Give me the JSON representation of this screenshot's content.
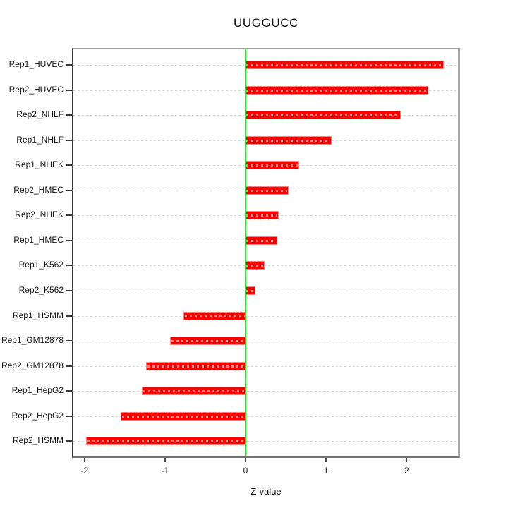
{
  "title": "UUGGUCC",
  "chart_data": {
    "type": "bar",
    "orientation": "horizontal",
    "title": "UUGGUCC",
    "xlabel": "Z-value",
    "ylabel": "",
    "categories": [
      "Rep1_HUVEC",
      "Rep2_HUVEC",
      "Rep2_NHLF",
      "Rep1_NHLF",
      "Rep1_NHEK",
      "Rep2_HMEC",
      "Rep2_NHEK",
      "Rep1_HMEC",
      "Rep1_K562",
      "Rep2_K562",
      "Rep1_HSMM",
      "Rep1_GM12878",
      "Rep2_GM12878",
      "Rep1_HepG2",
      "Rep2_HepG2",
      "Rep2_HSMM"
    ],
    "values": [
      2.45,
      2.26,
      1.92,
      1.06,
      0.66,
      0.53,
      0.4,
      0.39,
      0.23,
      0.11,
      -0.76,
      -0.93,
      -1.23,
      -1.28,
      -1.54,
      -1.97
    ],
    "xticks": [
      -2,
      -1,
      0,
      1,
      2
    ],
    "xticklabels": [
      "-2",
      "-1",
      "0",
      "1",
      "2"
    ],
    "xlim": [
      -2.15,
      2.65
    ],
    "grid": "dashed horizontal per category",
    "legend": "none",
    "bar_color": "#FF0000",
    "bar_edge_color": "#FF8585",
    "zero_line_color": "#00FF00",
    "gridline_color": "#D6D6D6"
  }
}
